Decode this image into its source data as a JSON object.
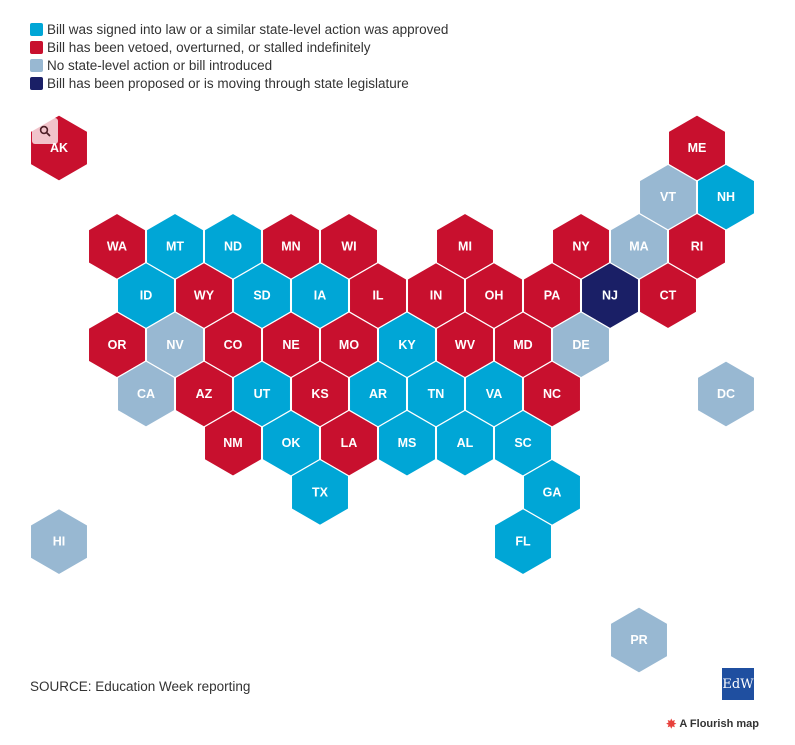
{
  "colors": {
    "signed": "#00a6d6",
    "vetoed": "#c8102e",
    "none": "#98b8d2",
    "proposed": "#1a1f66"
  },
  "legend": [
    {
      "key": "signed",
      "label": "Bill was signed into law or a similar state-level action was approved"
    },
    {
      "key": "vetoed",
      "label": "Bill has been vetoed, overturned, or stalled indefinitely"
    },
    {
      "key": "none",
      "label": "No state-level action or bill introduced"
    },
    {
      "key": "proposed",
      "label": "Bill has been proposed or is moving through state legislature"
    }
  ],
  "states": [
    {
      "abbr": "AK",
      "col": 0,
      "row": 0,
      "status": "vetoed"
    },
    {
      "abbr": "ME",
      "col": 11,
      "row": 0,
      "status": "vetoed"
    },
    {
      "abbr": "VT",
      "col": 10,
      "row": 1,
      "status": "none"
    },
    {
      "abbr": "NH",
      "col": 11,
      "row": 1,
      "status": "signed"
    },
    {
      "abbr": "WA",
      "col": 1,
      "row": 2,
      "status": "vetoed"
    },
    {
      "abbr": "MT",
      "col": 2,
      "row": 2,
      "status": "signed"
    },
    {
      "abbr": "ND",
      "col": 3,
      "row": 2,
      "status": "signed"
    },
    {
      "abbr": "MN",
      "col": 4,
      "row": 2,
      "status": "vetoed"
    },
    {
      "abbr": "WI",
      "col": 5,
      "row": 2,
      "status": "vetoed"
    },
    {
      "abbr": "MI",
      "col": 7,
      "row": 2,
      "status": "vetoed"
    },
    {
      "abbr": "NY",
      "col": 9,
      "row": 2,
      "status": "vetoed"
    },
    {
      "abbr": "MA",
      "col": 10,
      "row": 2,
      "status": "none"
    },
    {
      "abbr": "RI",
      "col": 11,
      "row": 2,
      "status": "vetoed"
    },
    {
      "abbr": "ID",
      "col": 1,
      "row": 3,
      "status": "signed"
    },
    {
      "abbr": "WY",
      "col": 2,
      "row": 3,
      "status": "vetoed"
    },
    {
      "abbr": "SD",
      "col": 3,
      "row": 3,
      "status": "signed"
    },
    {
      "abbr": "IA",
      "col": 4,
      "row": 3,
      "status": "signed"
    },
    {
      "abbr": "IL",
      "col": 5,
      "row": 3,
      "status": "vetoed"
    },
    {
      "abbr": "IN",
      "col": 6,
      "row": 3,
      "status": "vetoed"
    },
    {
      "abbr": "OH",
      "col": 7,
      "row": 3,
      "status": "vetoed"
    },
    {
      "abbr": "PA",
      "col": 8,
      "row": 3,
      "status": "vetoed"
    },
    {
      "abbr": "NJ",
      "col": 9,
      "row": 3,
      "status": "proposed"
    },
    {
      "abbr": "CT",
      "col": 10,
      "row": 3,
      "status": "vetoed"
    },
    {
      "abbr": "OR",
      "col": 1,
      "row": 4,
      "status": "vetoed"
    },
    {
      "abbr": "NV",
      "col": 2,
      "row": 4,
      "status": "none"
    },
    {
      "abbr": "CO",
      "col": 3,
      "row": 4,
      "status": "vetoed"
    },
    {
      "abbr": "NE",
      "col": 4,
      "row": 4,
      "status": "vetoed"
    },
    {
      "abbr": "MO",
      "col": 5,
      "row": 4,
      "status": "vetoed"
    },
    {
      "abbr": "KY",
      "col": 6,
      "row": 4,
      "status": "signed"
    },
    {
      "abbr": "WV",
      "col": 7,
      "row": 4,
      "status": "vetoed"
    },
    {
      "abbr": "MD",
      "col": 8,
      "row": 4,
      "status": "vetoed"
    },
    {
      "abbr": "DE",
      "col": 9,
      "row": 4,
      "status": "none"
    },
    {
      "abbr": "CA",
      "col": 1,
      "row": 5,
      "status": "none"
    },
    {
      "abbr": "AZ",
      "col": 2,
      "row": 5,
      "status": "vetoed"
    },
    {
      "abbr": "UT",
      "col": 3,
      "row": 5,
      "status": "signed"
    },
    {
      "abbr": "KS",
      "col": 4,
      "row": 5,
      "status": "vetoed"
    },
    {
      "abbr": "AR",
      "col": 5,
      "row": 5,
      "status": "signed"
    },
    {
      "abbr": "TN",
      "col": 6,
      "row": 5,
      "status": "signed"
    },
    {
      "abbr": "VA",
      "col": 7,
      "row": 5,
      "status": "signed"
    },
    {
      "abbr": "NC",
      "col": 8,
      "row": 5,
      "status": "vetoed"
    },
    {
      "abbr": "DC",
      "col": 11,
      "row": 5,
      "status": "none"
    },
    {
      "abbr": "NM",
      "col": 3,
      "row": 6,
      "status": "vetoed"
    },
    {
      "abbr": "OK",
      "col": 4,
      "row": 6,
      "status": "signed"
    },
    {
      "abbr": "LA",
      "col": 5,
      "row": 6,
      "status": "vetoed"
    },
    {
      "abbr": "MS",
      "col": 6,
      "row": 6,
      "status": "signed"
    },
    {
      "abbr": "AL",
      "col": 7,
      "row": 6,
      "status": "signed"
    },
    {
      "abbr": "SC",
      "col": 8,
      "row": 6,
      "status": "signed"
    },
    {
      "abbr": "TX",
      "col": 4,
      "row": 7,
      "status": "signed"
    },
    {
      "abbr": "GA",
      "col": 8,
      "row": 7,
      "status": "signed"
    },
    {
      "abbr": "HI",
      "col": 0,
      "row": 8,
      "status": "none"
    },
    {
      "abbr": "FL",
      "col": 8,
      "row": 8,
      "status": "signed"
    },
    {
      "abbr": "PR",
      "col": 10,
      "row": 10,
      "status": "none"
    }
  ],
  "source": "SOURCE: Education Week reporting",
  "logo_text": "EdW",
  "attribution": "A Flourish map",
  "zoom_icon": "search-icon"
}
